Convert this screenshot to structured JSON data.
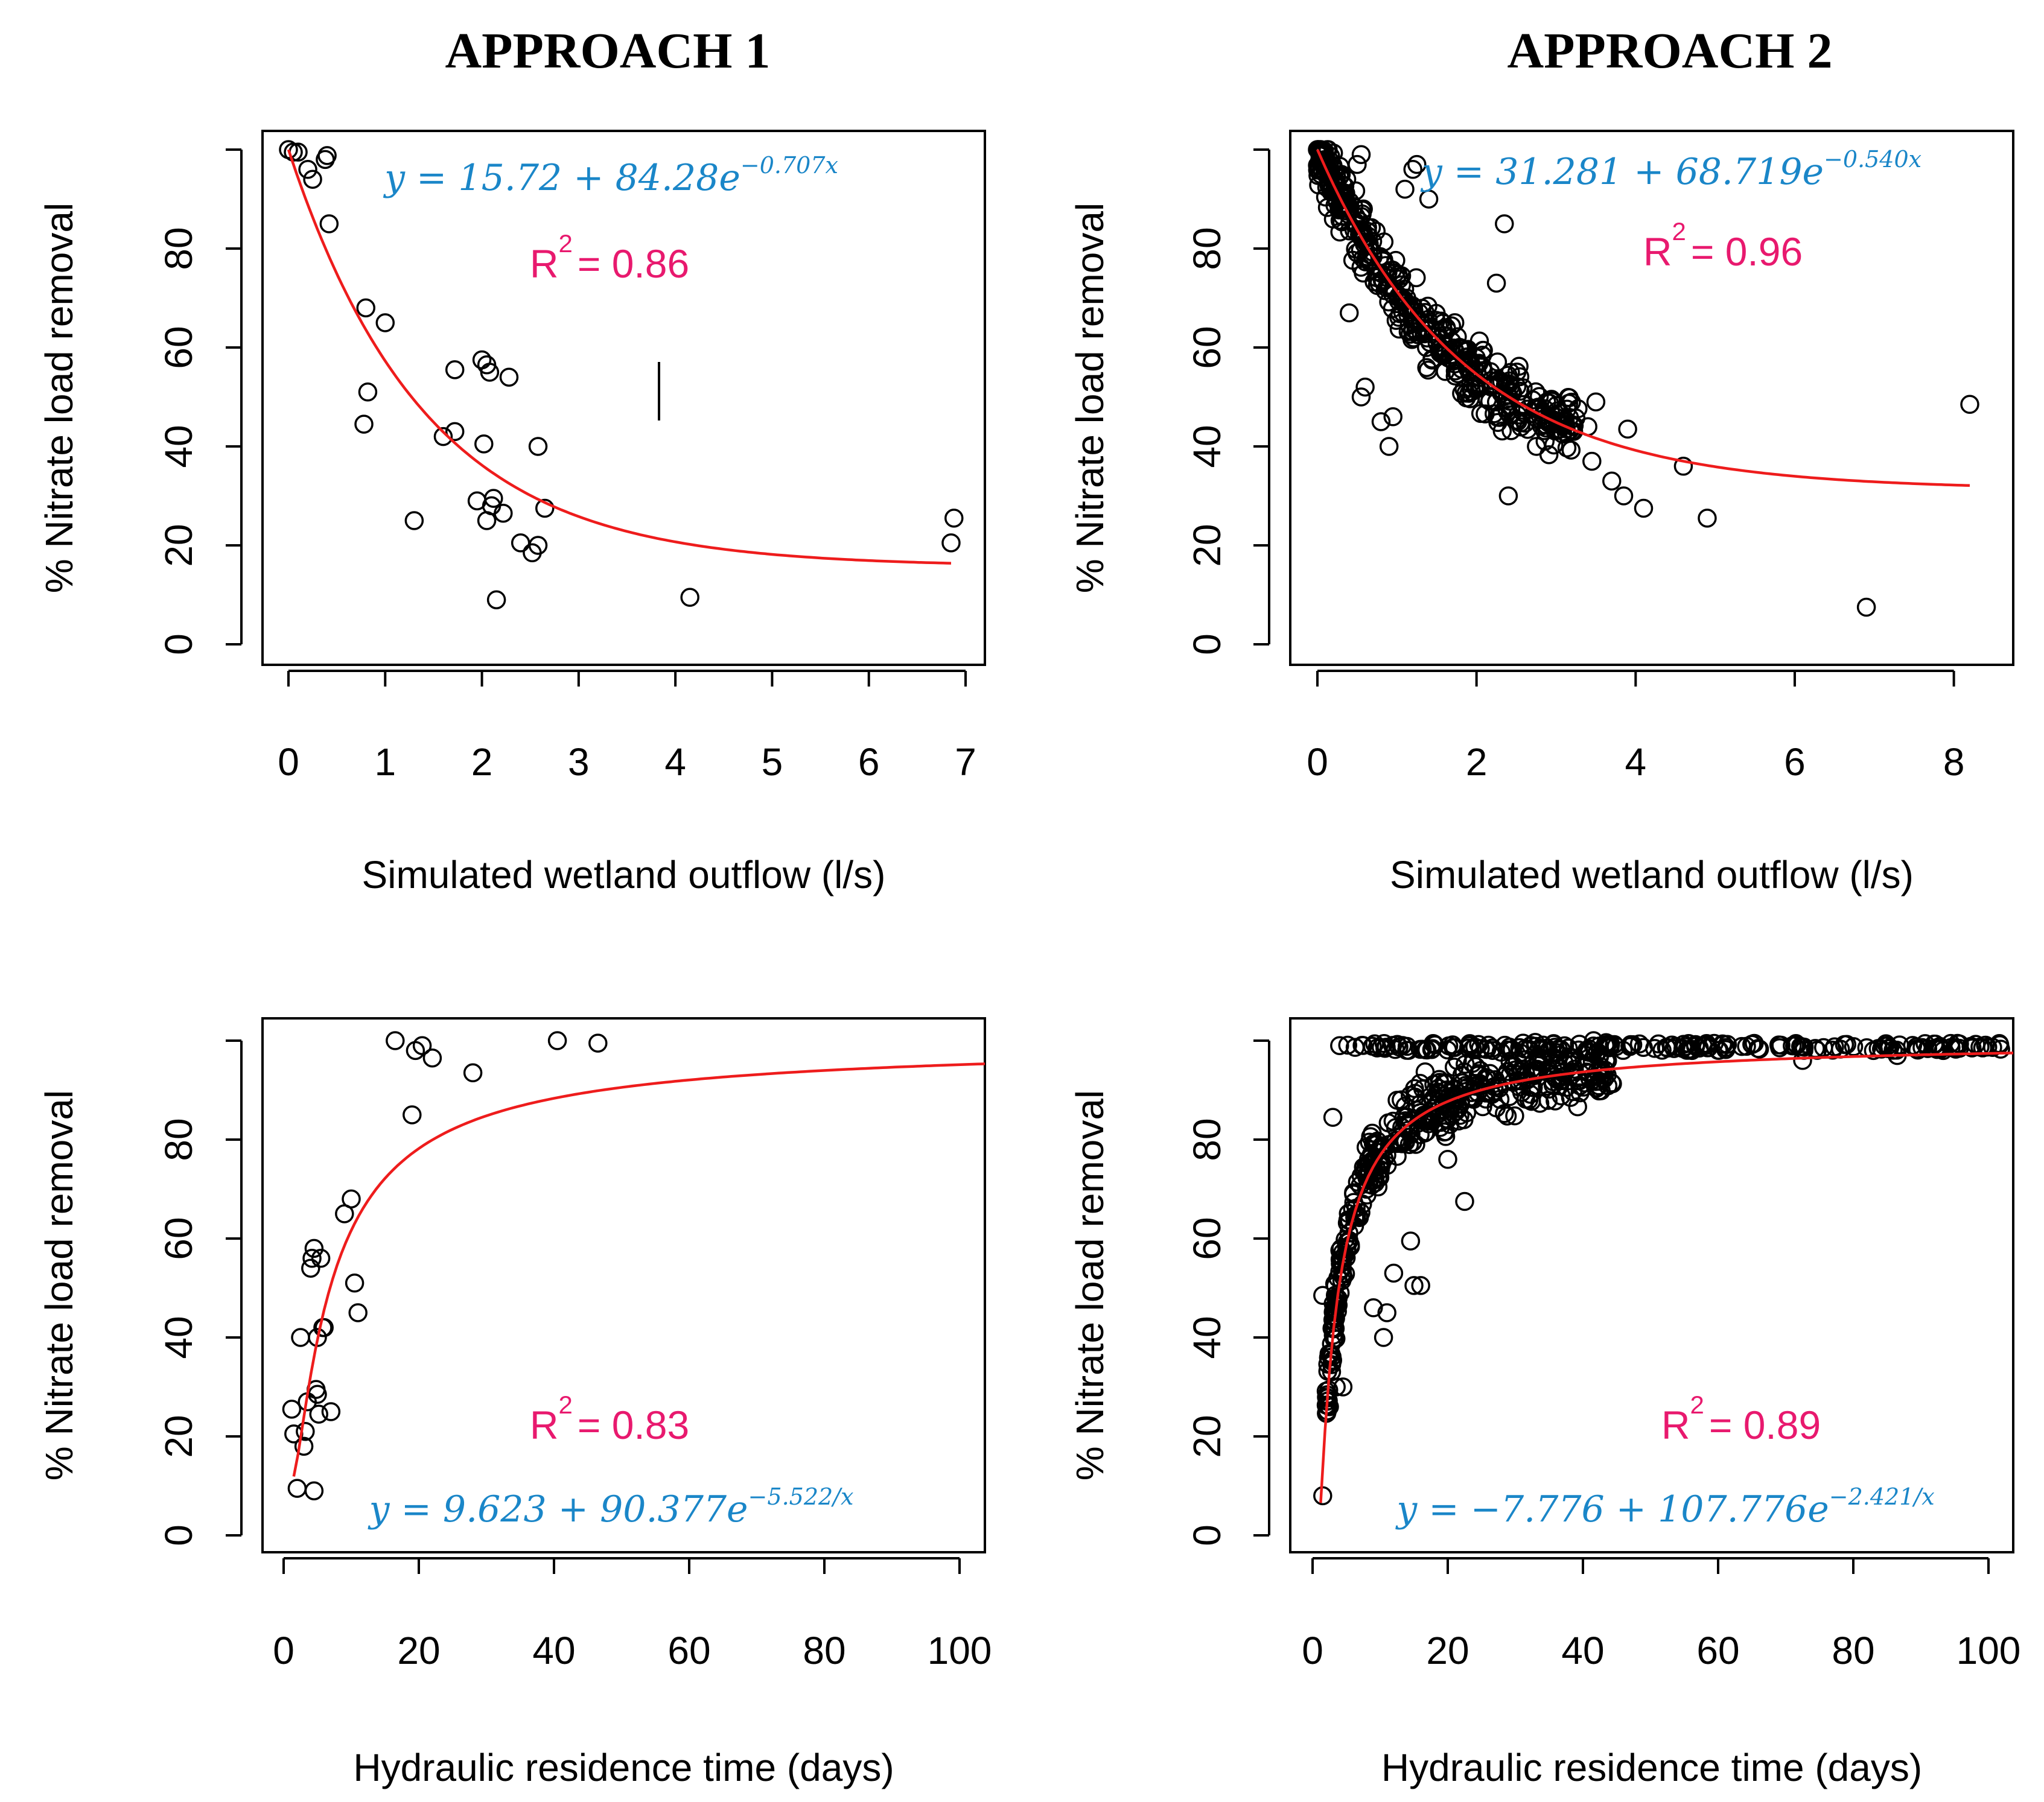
{
  "titles": {
    "left": "APPROACH 1",
    "right": "APPROACH 2"
  },
  "colors": {
    "fit": "#ee1c1c",
    "equation": "#1a86c8",
    "r2": "#e8196e",
    "points": "#000000"
  },
  "chart_data": [
    {
      "type": "scatter",
      "panel": "top-left",
      "column": "APPROACH 1",
      "xlabel": "Simulated wetland outflow (l/s)",
      "ylabel": "% Nitrate load removal",
      "xlim": [
        0,
        7
      ],
      "ylim": [
        0,
        100
      ],
      "xticks": [
        0,
        1,
        2,
        3,
        4,
        5,
        6,
        7
      ],
      "yticks": [
        0,
        20,
        40,
        60,
        80
      ],
      "equation": {
        "prefix": "y = 15.72 + 84.28e",
        "exponent": "−0.707x"
      },
      "r2": {
        "label": "R",
        "sup": "2",
        "value": "= 0.86"
      },
      "fit": {
        "kind": "exp",
        "a": 15.72,
        "b": 84.28,
        "c": 0.707,
        "x_range": [
          0,
          6.85
        ]
      },
      "points": [
        [
          0.0,
          100
        ],
        [
          0.05,
          99.5
        ],
        [
          0.1,
          99.5
        ],
        [
          0.2,
          96
        ],
        [
          0.25,
          94
        ],
        [
          0.38,
          98
        ],
        [
          0.4,
          98.8
        ],
        [
          0.42,
          85
        ],
        [
          0.8,
          68
        ],
        [
          0.82,
          51
        ],
        [
          0.78,
          44.5
        ],
        [
          1.0,
          65
        ],
        [
          1.3,
          25
        ],
        [
          1.6,
          42
        ],
        [
          1.72,
          55.5
        ],
        [
          1.72,
          43
        ],
        [
          1.95,
          29
        ],
        [
          2.0,
          57.5
        ],
        [
          2.02,
          40.5
        ],
        [
          2.05,
          56.5
        ],
        [
          2.08,
          55
        ],
        [
          2.05,
          25
        ],
        [
          2.1,
          28
        ],
        [
          2.12,
          29.5
        ],
        [
          2.15,
          9
        ],
        [
          2.22,
          26.5
        ],
        [
          2.28,
          54
        ],
        [
          2.4,
          20.5
        ],
        [
          2.52,
          18.5
        ],
        [
          2.58,
          20
        ],
        [
          2.58,
          40
        ],
        [
          2.65,
          27.5
        ],
        [
          4.15,
          9.5
        ],
        [
          6.85,
          20.5
        ],
        [
          6.88,
          25.5
        ]
      ]
    },
    {
      "type": "scatter",
      "panel": "top-right",
      "column": "APPROACH 2",
      "xlabel": "Simulated wetland outflow (l/s)",
      "ylabel": "% Nitrate load removal",
      "xlim": [
        0,
        8.2
      ],
      "ylim": [
        0,
        100
      ],
      "xticks": [
        0,
        2,
        4,
        6,
        8
      ],
      "yticks": [
        0,
        20,
        40,
        60,
        80
      ],
      "equation": {
        "prefix": "y = 31.281 + 68.719e",
        "exponent": "−0.540x"
      },
      "r2": {
        "label": "R",
        "sup": "2",
        "value": "= 0.96"
      },
      "fit": {
        "kind": "exp",
        "a": 31.281,
        "b": 68.719,
        "c": 0.54,
        "x_range": [
          0,
          8.2
        ]
      },
      "cloud": {
        "count": 420,
        "x_range": [
          0,
          3.3
        ],
        "spread": 4
      },
      "points": [
        [
          0.0,
          100
        ],
        [
          0.05,
          99
        ],
        [
          0.3,
          95
        ],
        [
          0.5,
          97
        ],
        [
          0.55,
          99
        ],
        [
          1.2,
          96
        ],
        [
          1.25,
          97
        ],
        [
          1.1,
          92
        ],
        [
          1.4,
          90
        ],
        [
          2.35,
          85
        ],
        [
          2.25,
          73
        ],
        [
          0.4,
          67
        ],
        [
          0.55,
          50
        ],
        [
          0.6,
          52
        ],
        [
          0.8,
          45
        ],
        [
          0.9,
          40
        ],
        [
          0.95,
          46
        ],
        [
          3.4,
          44
        ],
        [
          3.5,
          49
        ],
        [
          3.9,
          43.5
        ],
        [
          3.45,
          37
        ],
        [
          3.7,
          33
        ],
        [
          3.85,
          30
        ],
        [
          4.1,
          27.5
        ],
        [
          4.6,
          36
        ],
        [
          4.9,
          25.5
        ],
        [
          2.4,
          30
        ],
        [
          6.9,
          7.5
        ],
        [
          8.2,
          48.5
        ]
      ]
    },
    {
      "type": "scatter",
      "panel": "bottom-left",
      "column": "APPROACH 1",
      "xlabel": "Hydraulic residence time (days)",
      "ylabel": "% Nitrate load removal",
      "xlim": [
        0,
        100
      ],
      "ylim": [
        0,
        100
      ],
      "xticks": [
        0,
        20,
        40,
        60,
        80,
        100
      ],
      "yticks": [
        0,
        20,
        40,
        60,
        80
      ],
      "equation": {
        "prefix": "y = 9.623 + 90.377e",
        "exponent": "−5.522/x"
      },
      "r2": {
        "label": "R",
        "sup": "2",
        "value": "= 0.83"
      },
      "fit": {
        "kind": "inv",
        "a": 9.623,
        "b": 90.377,
        "c": 5.522,
        "x_range": [
          1.5,
          104
        ]
      },
      "points": [
        [
          1.2,
          25.5
        ],
        [
          1.5,
          20.5
        ],
        [
          2.0,
          9.5
        ],
        [
          2.5,
          40
        ],
        [
          3.0,
          18
        ],
        [
          3.2,
          21
        ],
        [
          3.5,
          27
        ],
        [
          4.0,
          54
        ],
        [
          4.2,
          56
        ],
        [
          4.5,
          58
        ],
        [
          4.5,
          9
        ],
        [
          4.8,
          29.5
        ],
        [
          5.0,
          40
        ],
        [
          5.0,
          28.5
        ],
        [
          5.2,
          24.5
        ],
        [
          5.5,
          56
        ],
        [
          5.8,
          42
        ],
        [
          6.0,
          42
        ],
        [
          7.0,
          25
        ],
        [
          9.0,
          65
        ],
        [
          10.0,
          68
        ],
        [
          10.5,
          51
        ],
        [
          11.0,
          45
        ],
        [
          16.5,
          100
        ],
        [
          19.0,
          85
        ],
        [
          19.5,
          98
        ],
        [
          20.5,
          99
        ],
        [
          22.0,
          96.5
        ],
        [
          28.0,
          93.5
        ],
        [
          40.5,
          100
        ],
        [
          46.5,
          99.5
        ]
      ]
    },
    {
      "type": "scatter",
      "panel": "bottom-right",
      "column": "APPROACH 2",
      "xlabel": "Hydraulic residence time (days)",
      "ylabel": "% Nitrate load removal",
      "xlim": [
        0,
        100
      ],
      "ylim": [
        0,
        100
      ],
      "xticks": [
        0,
        20,
        40,
        60,
        80,
        100
      ],
      "yticks": [
        0,
        20,
        40,
        60,
        80
      ],
      "equation": {
        "prefix": "y = −7.776 + 107.776e",
        "exponent": "−2.421/x"
      },
      "r2": {
        "label": "R",
        "sup": "2",
        "value": "= 0.89"
      },
      "fit": {
        "kind": "inv",
        "a": -7.776,
        "b": 107.776,
        "c": 2.421,
        "x_range": [
          1.2,
          104
        ]
      },
      "cloud": {
        "count": 420,
        "x_range": [
          2,
          45
        ],
        "spread": 4
      },
      "top_band": {
        "count": 190,
        "x_range": [
          5,
          102
        ],
        "y": 99.5
      },
      "points": [
        [
          1.5,
          8
        ],
        [
          1.5,
          48.5
        ],
        [
          2.5,
          26
        ],
        [
          3.5,
          30
        ],
        [
          4.5,
          30
        ],
        [
          3.0,
          84.5
        ],
        [
          4.0,
          99
        ],
        [
          9.0,
          46
        ],
        [
          10.5,
          40
        ],
        [
          11.0,
          45
        ],
        [
          12.0,
          53
        ],
        [
          14.5,
          59.5
        ],
        [
          15.0,
          50.5
        ],
        [
          16.0,
          50.5
        ],
        [
          22.5,
          67.5
        ],
        [
          20.0,
          76
        ],
        [
          24.5,
          93
        ],
        [
          32.0,
          88
        ],
        [
          72.5,
          96
        ],
        [
          86.5,
          97
        ]
      ]
    }
  ]
}
